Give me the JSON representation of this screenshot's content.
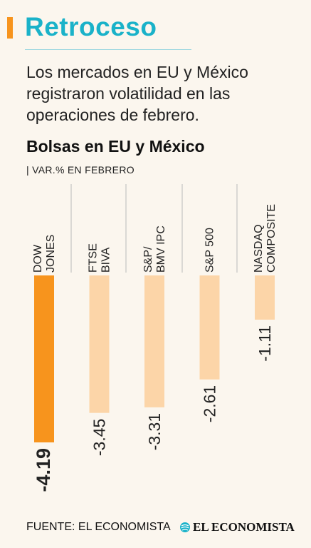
{
  "header": {
    "title": "Retroceso",
    "subtitle": "Los mercados en EU y México registraron volatilidad en las operaciones de febrero."
  },
  "colors": {
    "title": "#1ab2c9",
    "accent": "#f7941d",
    "bar_highlight": "#f7941d",
    "bar_default": "#fcd5a8"
  },
  "chart_data": {
    "type": "bar",
    "title": "Bolsas en EU y México",
    "ylabel": "| VAR.% EN FEBRERO",
    "categories": [
      [
        "DOW",
        "JONES"
      ],
      [
        "FTSE",
        "BIVA"
      ],
      [
        "S&P/",
        "BMV IPC"
      ],
      [
        "S&P 500"
      ],
      [
        "NASDAQ",
        "COMPOSITE"
      ]
    ],
    "values": [
      -4.19,
      -3.45,
      -3.31,
      -2.61,
      -1.11
    ],
    "value_labels": [
      "-4.19",
      "-3.45",
      "-3.31",
      "-2.61",
      "-1.11"
    ],
    "highlight_index": 0,
    "ylim": [
      -4.19,
      0
    ],
    "legend": "none",
    "grid": false
  },
  "footer": {
    "source": "FUENTE: EL ECONOMISTA",
    "logo_text": "EL ECONOMISTA",
    "logo_icon": "globe-icon"
  }
}
